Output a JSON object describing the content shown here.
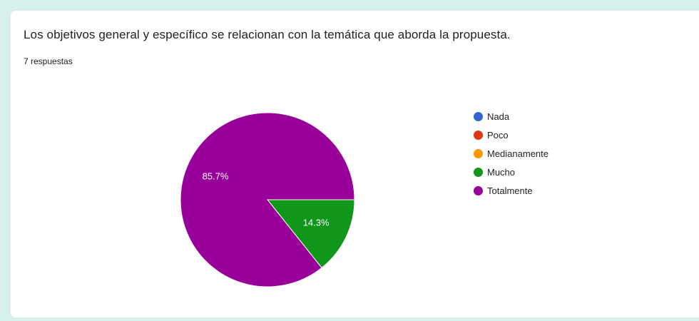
{
  "question": {
    "title": "Los objetivos general y específico se relacionan con la temática que aborda la propuesta.",
    "responses": "7 respuestas"
  },
  "chart_data": {
    "type": "pie",
    "categories": [
      "Nada",
      "Poco",
      "Medianamente",
      "Mucho",
      "Totalmente"
    ],
    "colors": [
      "#3366cc",
      "#dc3912",
      "#ff9900",
      "#109618",
      "#990099"
    ],
    "values": [
      0,
      0,
      0,
      1,
      6
    ],
    "labels": [
      "",
      "",
      "",
      "14.3%",
      "85.7%"
    ],
    "legend_position": "right"
  }
}
